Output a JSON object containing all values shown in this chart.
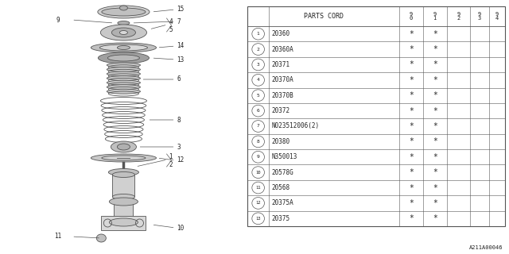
{
  "title": "PARTS CORD",
  "rows": [
    [
      "1",
      "20360"
    ],
    [
      "2",
      "20360A"
    ],
    [
      "3",
      "20371"
    ],
    [
      "4",
      "20370A"
    ],
    [
      "5",
      "20370B"
    ],
    [
      "6",
      "20372"
    ],
    [
      "7",
      "N023512006(2)"
    ],
    [
      "8",
      "20380"
    ],
    [
      "9",
      "N350013"
    ],
    [
      "10",
      "20578G"
    ],
    [
      "11",
      "20568"
    ],
    [
      "12",
      "20375A"
    ],
    [
      "13",
      "20375"
    ]
  ],
  "footer": "A211A00046",
  "lc": "#555555",
  "tc": "#222222"
}
